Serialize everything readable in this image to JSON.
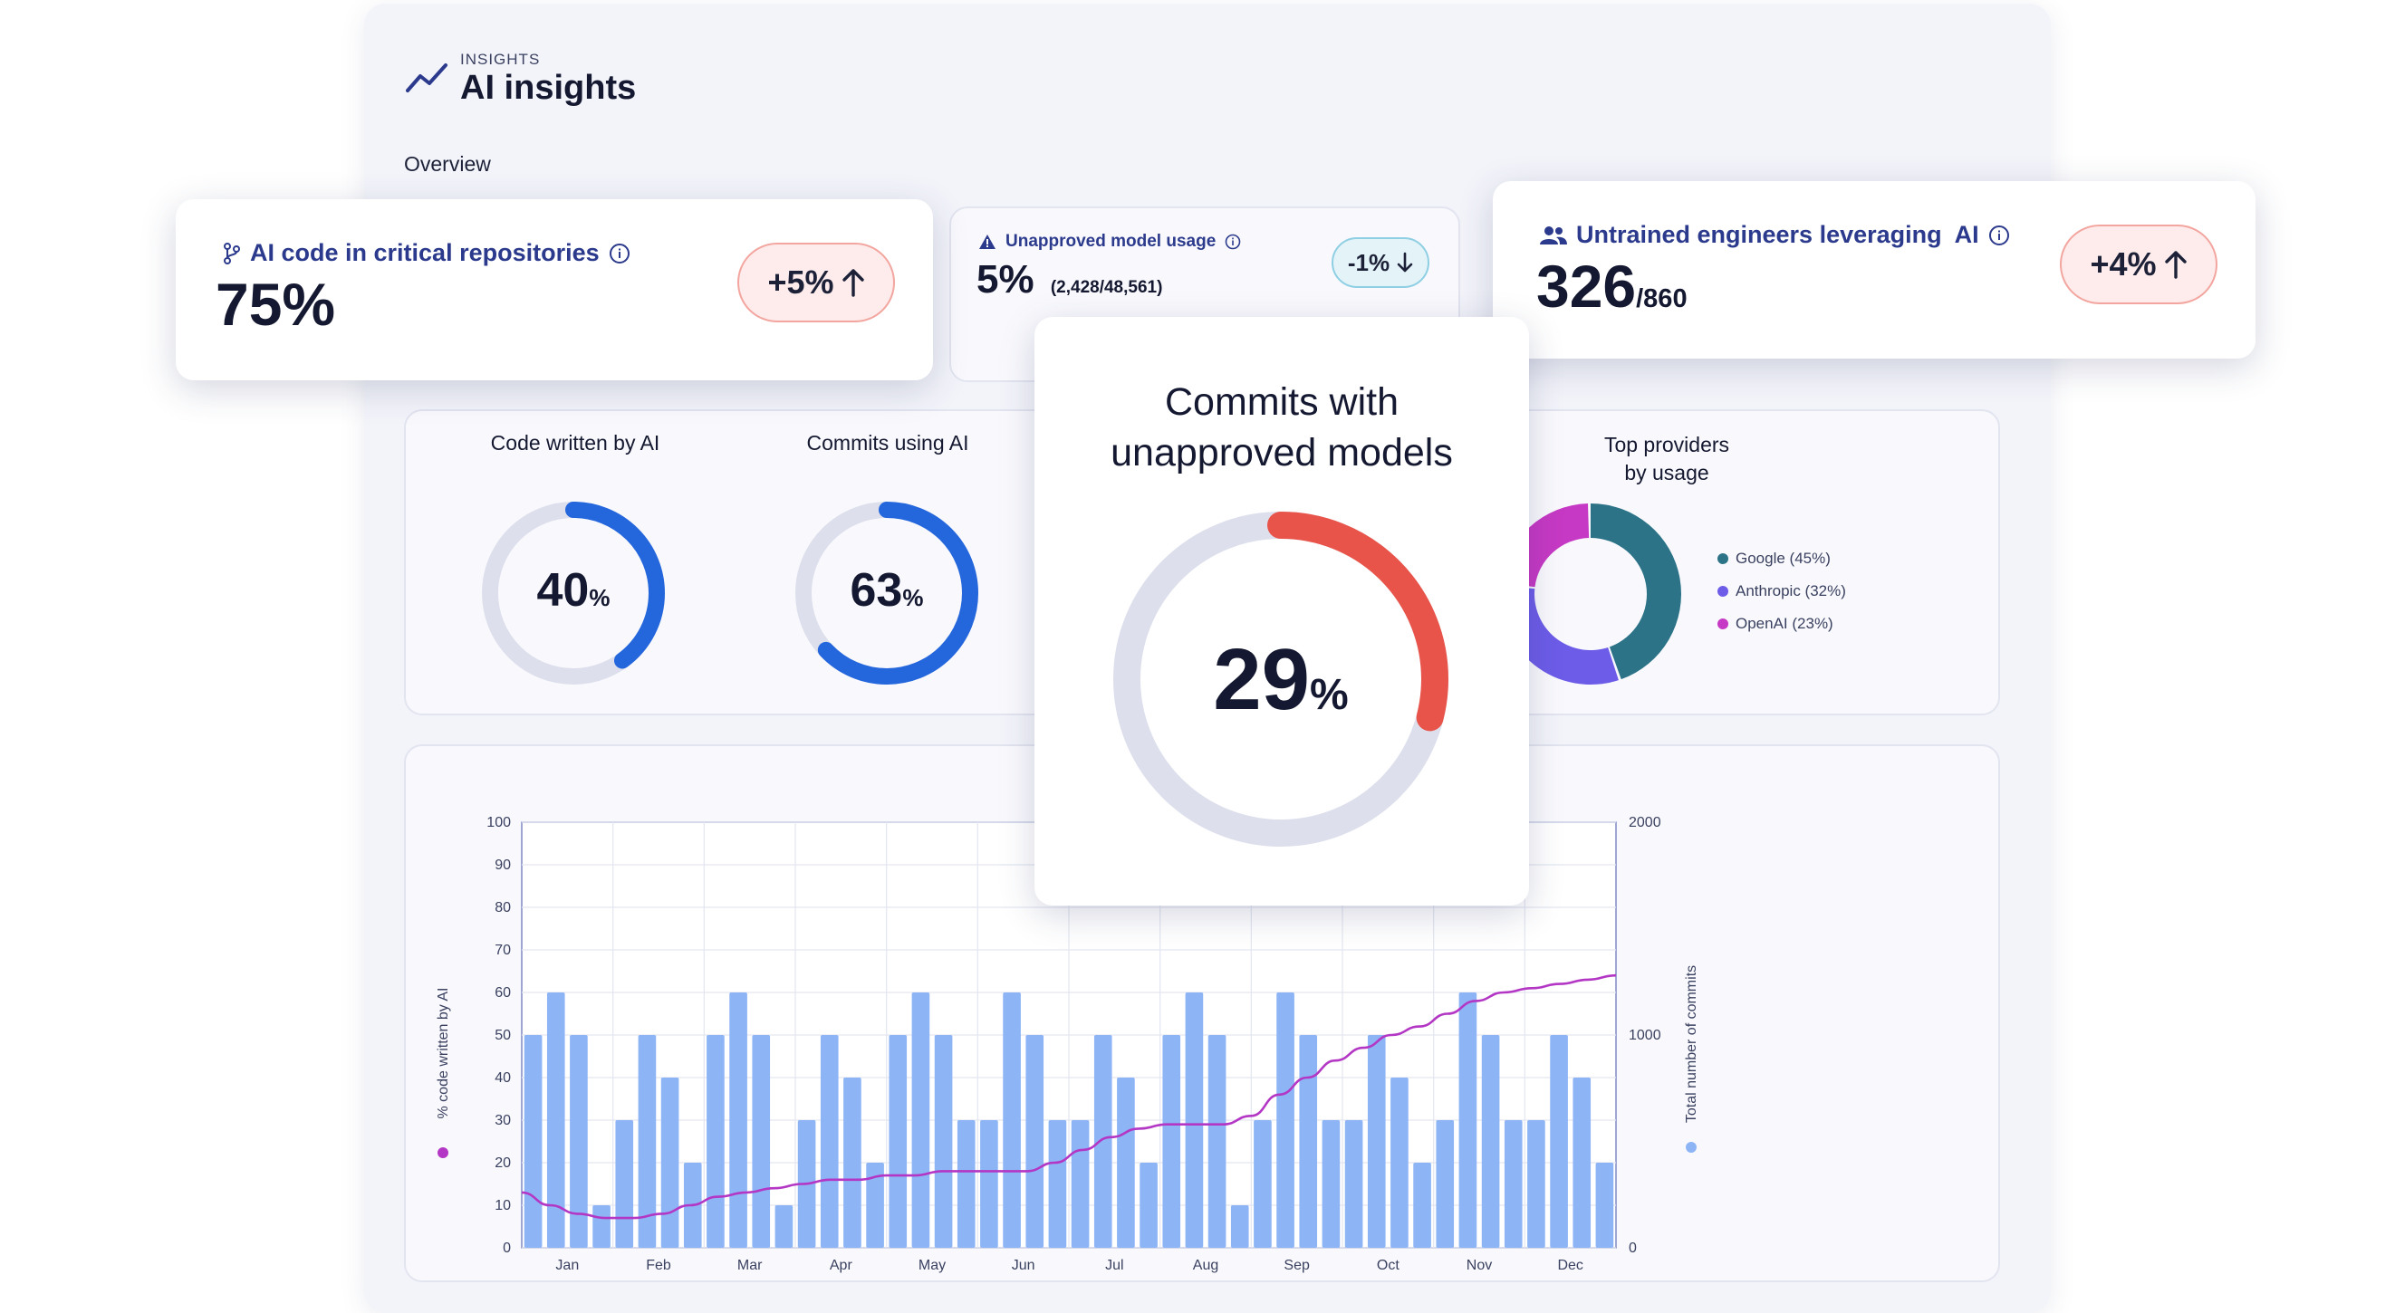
{
  "header": {
    "eyebrow": "INSIGHTS",
    "title": "AI insights",
    "section": "Overview",
    "icon": "trend-line-icon"
  },
  "kpis": {
    "critical_repos": {
      "label": "AI code in critical repositories",
      "value": "75%",
      "delta": "+5%",
      "icon": "git-branch-icon"
    },
    "unapproved_usage": {
      "label": "Unapproved model usage",
      "value": "5%",
      "sub": "(2,428/48,561)",
      "delta": "-1%",
      "icon": "warning-icon"
    },
    "untrained": {
      "label": "Untrained engineers leveraging  AI",
      "value": "326",
      "sub": "/860",
      "delta": "+4%",
      "icon": "users-icon"
    }
  },
  "donuts": {
    "code_written": {
      "title": "Code written by AI",
      "value": "40",
      "unit": "%",
      "fraction": 0.4,
      "color": "#2466dc"
    },
    "commits_ai": {
      "title": "Commits using AI",
      "value": "63",
      "unit": "%",
      "fraction": 0.63,
      "color": "#2466dc"
    },
    "commits_unapproved": {
      "title_line1": "Commits with",
      "title_line2": "unapproved models",
      "value": "29",
      "unit": "%",
      "fraction": 0.29,
      "color": "#e8544a"
    }
  },
  "providers": {
    "title_line1": "Top providers",
    "title_line2": "by usage",
    "items": [
      {
        "label": "Google (45%)",
        "share": 45,
        "color": "#2c7388"
      },
      {
        "label": "Anthropic (32%)",
        "share": 32,
        "color": "#6d5ce8"
      },
      {
        "label": "OpenAI (23%)",
        "share": 23,
        "color": "#c639c4"
      }
    ]
  },
  "chart_data": {
    "type": "bar",
    "title": "",
    "xlabel": "",
    "ylabel": "% code written by AI",
    "y2label": "Total number of commits",
    "ylim": [
      0,
      100
    ],
    "y2lim": [
      0,
      2000
    ],
    "yticks": [
      0,
      10,
      20,
      30,
      40,
      50,
      60,
      70,
      80,
      90,
      100
    ],
    "y2ticks": [
      0,
      1000,
      2000
    ],
    "month_labels": [
      "Jan",
      "Feb",
      "Mar",
      "Apr",
      "May",
      "Jun",
      "Jul",
      "Aug",
      "Sep",
      "Oct",
      "Nov",
      "Dec"
    ],
    "series": [
      {
        "name": "Total number of commits",
        "axis": "right",
        "color": "#8db4f5",
        "values": [
          1000,
          1200,
          1000,
          200,
          600,
          1000,
          800,
          400,
          1000,
          1200,
          1000,
          200,
          600,
          1000,
          800,
          400,
          1000,
          1200,
          1000,
          600,
          600,
          1200,
          1000,
          600,
          600,
          1000,
          800,
          400,
          1000,
          1200,
          1000,
          200,
          600,
          1200,
          1000,
          600,
          600,
          1000,
          800,
          400,
          600,
          1200,
          1000,
          600,
          600,
          1000,
          800,
          400
        ]
      },
      {
        "name": "% code written by AI",
        "axis": "left",
        "color": "#b337c4",
        "values": [
          13,
          10,
          8,
          7,
          7,
          8,
          10,
          12,
          13,
          14,
          15,
          16,
          16,
          17,
          17,
          18,
          18,
          18,
          18,
          20,
          23,
          26,
          28,
          29,
          29,
          29,
          31,
          36,
          40,
          44,
          47,
          50,
          52,
          55,
          58,
          60,
          61,
          62,
          63,
          64
        ]
      }
    ]
  }
}
